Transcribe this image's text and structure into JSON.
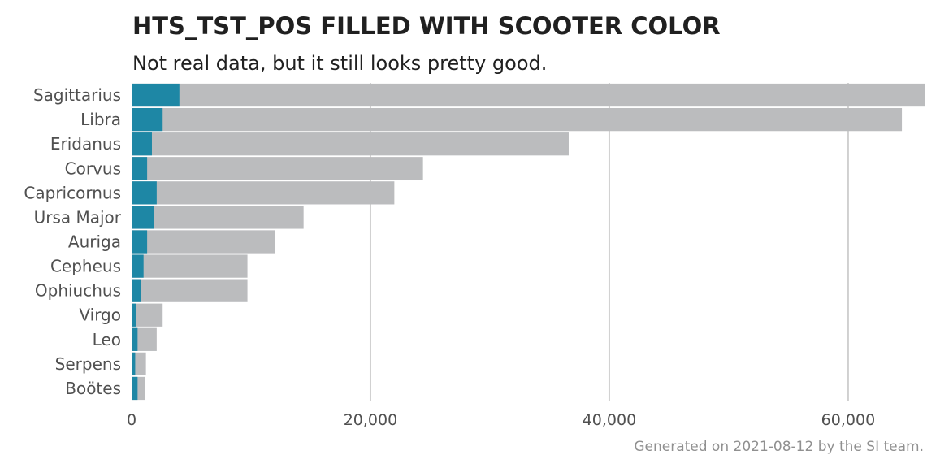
{
  "chart_data": {
    "type": "bar",
    "orientation": "horizontal",
    "stacked": "overlay",
    "title": "HTS_TST_POS FILLED WITH SCOOTER COLOR",
    "subtitle": "Not real data, but it still looks pretty good.",
    "caption": "Generated on  2021-08-12  by the SI team.",
    "categories": [
      "Sagittarius",
      "Libra",
      "Eridanus",
      "Corvus",
      "Capricornus",
      "Ursa Major",
      "Auriga",
      "Cepheus",
      "Ophiuchus",
      "Virgo",
      "Leo",
      "Serpens",
      "Boötes"
    ],
    "series": [
      {
        "values": [
          66400,
          64500,
          36600,
          24400,
          22000,
          14400,
          12000,
          9700,
          9700,
          2600,
          2100,
          1200,
          1100
        ],
        "color": "#bbbcbe"
      },
      {
        "values": [
          4000,
          2600,
          1700,
          1300,
          2100,
          1900,
          1300,
          1000,
          800,
          400,
          500,
          300,
          500
        ],
        "color": "#1e87a5"
      }
    ],
    "xlim": [
      0,
      66400
    ],
    "xticks": [
      0,
      20000,
      40000,
      60000
    ],
    "xtick_labels": [
      "0",
      "20,000",
      "40,000",
      "60,000"
    ],
    "grid": "vertical major",
    "legend": "none"
  }
}
